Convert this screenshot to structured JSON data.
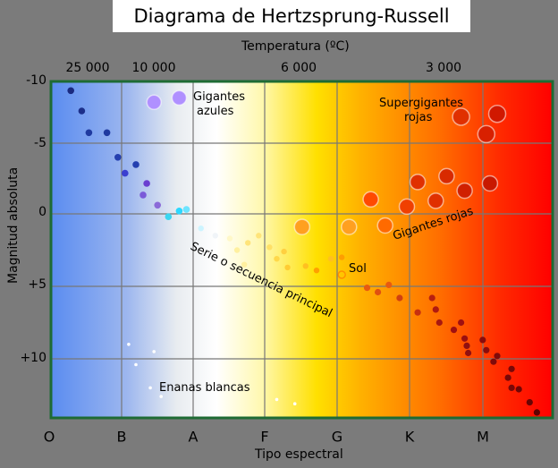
{
  "title": "Diagrama de Hertzsprung-Russell",
  "top_axis": {
    "label": "Temperatura (ºC)",
    "ticks": [
      "25 000",
      "10 000",
      "6 000",
      "3 000"
    ]
  },
  "bottom_axis": {
    "label": "Tipo espectral",
    "ticks": [
      "O",
      "B",
      "A",
      "F",
      "G",
      "K",
      "M"
    ]
  },
  "left_axis": {
    "label": "Magnitud absoluta",
    "ticks": [
      "-10",
      "-5",
      "0",
      "+5",
      "+10"
    ]
  },
  "regions": {
    "blue_giants": [
      "Gigantes",
      "azules"
    ],
    "supergiants": [
      "Supergigantes",
      "rojas"
    ],
    "red_giants": "Gigantes rojas",
    "main_sequence": "Serie o secuencia principal",
    "sun": "Sol",
    "white_dwarfs": "Enanas blancas"
  },
  "colors": {
    "frame": "#1e6b34",
    "grid": "#777777",
    "background": "#7b7b7b"
  },
  "chart_data": {
    "type": "scatter",
    "x_categories": [
      "O",
      "B",
      "A",
      "F",
      "G",
      "K",
      "M"
    ],
    "ylim": [
      -10,
      14
    ],
    "y_inverted": true,
    "groups": [
      {
        "label": "main-sequence-blue",
        "points": [
          {
            "x": 0.3,
            "y": -8.5,
            "c": "#1a2a80"
          },
          {
            "x": 0.45,
            "y": -7.1,
            "c": "#1c2f8a"
          },
          {
            "x": 0.55,
            "y": -5.6,
            "c": "#1f3aa0"
          },
          {
            "x": 0.8,
            "y": -5.6,
            "c": "#1f3aa0"
          },
          {
            "x": 0.95,
            "y": -3.9,
            "c": "#2540b0"
          },
          {
            "x": 1.05,
            "y": -2.8,
            "c": "#3b3fd0"
          },
          {
            "x": 1.2,
            "y": -3.4,
            "c": "#2540b0"
          },
          {
            "x": 1.35,
            "y": -2.1,
            "c": "#6a3fd0"
          },
          {
            "x": 1.3,
            "y": -1.3,
            "c": "#7a5ad8"
          },
          {
            "x": 1.5,
            "y": -0.6,
            "c": "#8b6ad8"
          },
          {
            "x": 1.65,
            "y": 0.2,
            "c": "#3ad6f0"
          },
          {
            "x": 1.8,
            "y": -0.2,
            "c": "#2dd8ff"
          },
          {
            "x": 1.9,
            "y": -0.3,
            "c": "#6de4ff"
          }
        ]
      },
      {
        "label": "main-sequence-white",
        "points": [
          {
            "x": 2.1,
            "y": 1.0,
            "c": "#ccf4ff"
          },
          {
            "x": 2.3,
            "y": 1.5,
            "c": "#f0f4f8"
          },
          {
            "x": 2.5,
            "y": 1.7,
            "c": "#fff8c8"
          },
          {
            "x": 2.6,
            "y": 2.5,
            "c": "#fff0a0"
          },
          {
            "x": 2.7,
            "y": 3.5,
            "c": "#fff0a0"
          },
          {
            "x": 2.75,
            "y": 2.0,
            "c": "#ffe47a"
          },
          {
            "x": 2.9,
            "y": 1.5,
            "c": "#ffe47a"
          },
          {
            "x": 3.05,
            "y": 2.3,
            "c": "#ffe066"
          },
          {
            "x": 3.15,
            "y": 3.1,
            "c": "#ffd84a"
          },
          {
            "x": 3.25,
            "y": 2.6,
            "c": "#ffd040"
          },
          {
            "x": 3.3,
            "y": 3.7,
            "c": "#ffcc33"
          },
          {
            "x": 3.55,
            "y": 3.6,
            "c": "#ffc020"
          },
          {
            "x": 3.7,
            "y": 3.9,
            "c": "#ffa000"
          },
          {
            "x": 3.9,
            "y": 3.1,
            "c": "#ffc020"
          },
          {
            "x": 4.05,
            "y": 3.0,
            "c": "#ff9e00"
          }
        ]
      },
      {
        "label": "main-sequence-red",
        "points": [
          {
            "x": 4.4,
            "y": 5.1,
            "c": "#e85a10"
          },
          {
            "x": 4.55,
            "y": 5.4,
            "c": "#e05010"
          },
          {
            "x": 4.7,
            "y": 4.9,
            "c": "#e85a10"
          },
          {
            "x": 4.85,
            "y": 5.8,
            "c": "#d04010"
          },
          {
            "x": 5.1,
            "y": 6.8,
            "c": "#c63010"
          },
          {
            "x": 5.3,
            "y": 5.8,
            "c": "#b82010"
          },
          {
            "x": 5.35,
            "y": 6.6,
            "c": "#b01a10"
          },
          {
            "x": 5.4,
            "y": 7.5,
            "c": "#a81810"
          },
          {
            "x": 5.6,
            "y": 8.0,
            "c": "#a01010"
          },
          {
            "x": 5.7,
            "y": 7.5,
            "c": "#a01010"
          },
          {
            "x": 5.75,
            "y": 8.6,
            "c": "#9a1010"
          },
          {
            "x": 5.78,
            "y": 9.1,
            "c": "#901010"
          },
          {
            "x": 5.8,
            "y": 9.6,
            "c": "#901010"
          },
          {
            "x": 6.0,
            "y": 8.7,
            "c": "#8a0c0c"
          },
          {
            "x": 6.05,
            "y": 9.4,
            "c": "#8a0c0c"
          },
          {
            "x": 6.15,
            "y": 10.2,
            "c": "#800a0a"
          },
          {
            "x": 6.2,
            "y": 9.8,
            "c": "#800a0a"
          },
          {
            "x": 6.35,
            "y": 11.3,
            "c": "#780808"
          },
          {
            "x": 6.4,
            "y": 12.0,
            "c": "#780808"
          },
          {
            "x": 6.4,
            "y": 10.7,
            "c": "#780808"
          },
          {
            "x": 6.5,
            "y": 12.1,
            "c": "#700606"
          },
          {
            "x": 6.65,
            "y": 13.0,
            "c": "#680404"
          },
          {
            "x": 6.75,
            "y": 13.7,
            "c": "#600202"
          }
        ]
      },
      {
        "label": "white-dwarfs",
        "points": [
          {
            "x": 1.1,
            "y": 9.0,
            "c": "#ffffff"
          },
          {
            "x": 1.2,
            "y": 10.4,
            "c": "#ffffff"
          },
          {
            "x": 1.45,
            "y": 9.5,
            "c": "#ffffff"
          },
          {
            "x": 1.4,
            "y": 12.0,
            "c": "#ffffff"
          },
          {
            "x": 1.55,
            "y": 12.6,
            "c": "#ffffff"
          },
          {
            "x": 3.15,
            "y": 12.8,
            "c": "#ffffff"
          },
          {
            "x": 3.4,
            "y": 13.1,
            "c": "#ffffff"
          }
        ]
      },
      {
        "label": "blue-giants",
        "points": [
          {
            "x": 1.45,
            "y": -7.7,
            "c": "#b090ff"
          },
          {
            "x": 1.8,
            "y": -8.0,
            "c": "#b090ff"
          }
        ]
      },
      {
        "label": "sun",
        "points": [
          {
            "x": 4.05,
            "y": 4.2,
            "c": "#ff9000"
          }
        ]
      },
      {
        "label": "red-giants",
        "points": [
          {
            "x": 3.5,
            "y": 0.9,
            "c": "#ffa020"
          },
          {
            "x": 4.15,
            "y": 0.9,
            "c": "#ffa020"
          },
          {
            "x": 4.65,
            "y": 0.8,
            "c": "#ff6a00"
          },
          {
            "x": 4.45,
            "y": -1.0,
            "c": "#ff4a00"
          },
          {
            "x": 4.95,
            "y": -0.5,
            "c": "#f04000"
          },
          {
            "x": 5.1,
            "y": -2.2,
            "c": "#e03000"
          },
          {
            "x": 5.35,
            "y": -0.9,
            "c": "#e03000"
          },
          {
            "x": 5.5,
            "y": -2.6,
            "c": "#d82a00"
          },
          {
            "x": 5.75,
            "y": -1.6,
            "c": "#d02000"
          },
          {
            "x": 6.1,
            "y": -2.1,
            "c": "#c81800"
          }
        ]
      },
      {
        "label": "supergiants",
        "points": [
          {
            "x": 5.7,
            "y": -6.7,
            "c": "#e03000"
          },
          {
            "x": 6.05,
            "y": -5.5,
            "c": "#d82000"
          },
          {
            "x": 6.2,
            "y": -6.9,
            "c": "#d01800"
          }
        ]
      }
    ]
  }
}
